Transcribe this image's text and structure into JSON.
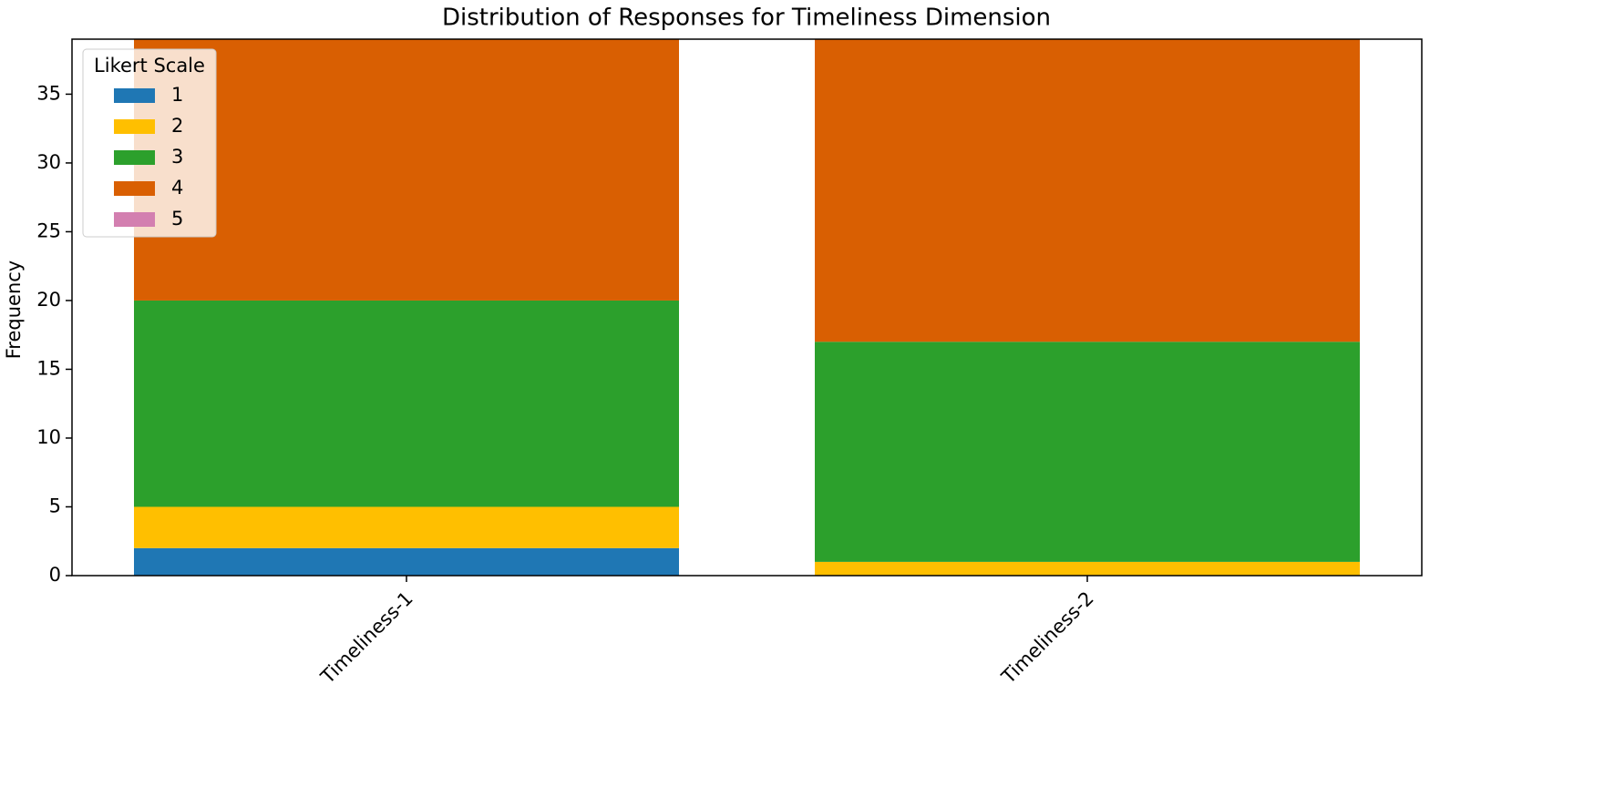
{
  "chart_data": {
    "type": "stacked_bar",
    "title": "Distribution of Responses for Timeliness Dimension",
    "y_label": "Frequency",
    "categories": [
      "Timeliness-1",
      "Timeliness-2"
    ],
    "legend_title": "Likert Scale",
    "legend_position": "upper left",
    "series": [
      {
        "name": "1",
        "color": "#1f77b4",
        "values": [
          2,
          0
        ]
      },
      {
        "name": "2",
        "color": "#ffbf00",
        "values": [
          3,
          1
        ]
      },
      {
        "name": "3",
        "color": "#2ca02c",
        "values": [
          15,
          16
        ]
      },
      {
        "name": "4",
        "color": "#d95f02",
        "values": [
          19,
          22
        ]
      },
      {
        "name": "5",
        "color": "#d37fb0",
        "values": [
          0,
          0
        ]
      }
    ],
    "ylim": [
      0,
      39
    ],
    "yticks": [
      0,
      5,
      10,
      15,
      20,
      25,
      30,
      35
    ]
  }
}
